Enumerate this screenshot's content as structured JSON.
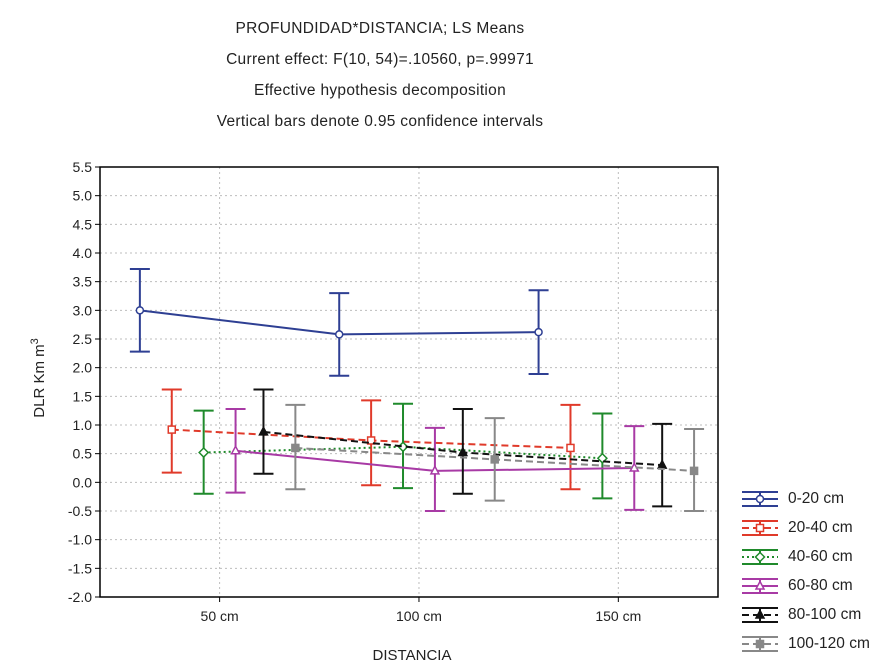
{
  "chart_data": {
    "type": "line",
    "title": "PROFUNDIDAD*DISTANCIA; LS Means",
    "subtitle_lines": [
      "Current effect: F(10, 54)=.10560, p=.99971",
      "Effective hypothesis decomposition",
      "Vertical bars denote 0.95 confidence intervals"
    ],
    "xlabel": "DISTANCIA",
    "ylabel": "DLR Km m",
    "ylabel_superscript": "3",
    "x_tick_labels": [
      "50 cm",
      "100 cm",
      "150 cm"
    ],
    "y_ticks": [
      5.5,
      5.0,
      4.5,
      4.0,
      3.5,
      3.0,
      2.5,
      2.0,
      1.5,
      1.0,
      0.5,
      0.0,
      -0.5,
      -1.0,
      -1.5,
      -2.0
    ],
    "y_tick_labels": [
      "5.5",
      "5.0",
      "4.5",
      "4.0",
      "3.5",
      "3.0",
      "2.5",
      "2.0",
      "1.5",
      "1.0",
      "0.5",
      "0.0",
      "-0.5",
      "-1.0",
      "-1.5",
      "-2.0"
    ],
    "ylim": [
      -2.0,
      5.5
    ],
    "grid": true,
    "legend_position": "right",
    "series": [
      {
        "name": "0-20 cm",
        "color": "#2e3f93",
        "marker": "circle",
        "dash": "solid",
        "x": [
          30,
          80,
          130
        ],
        "y": [
          3.0,
          2.58,
          2.62
        ],
        "lower": [
          2.28,
          1.86,
          1.89
        ],
        "upper": [
          3.72,
          3.3,
          3.35
        ]
      },
      {
        "name": "20-40 cm",
        "color": "#e03a2a",
        "marker": "square",
        "dash": "dashed",
        "x": [
          38,
          88,
          138
        ],
        "y": [
          0.92,
          0.73,
          0.6
        ],
        "lower": [
          0.17,
          -0.05,
          -0.12
        ],
        "upper": [
          1.62,
          1.43,
          1.35
        ]
      },
      {
        "name": "40-60 cm",
        "color": "#1f8a2b",
        "marker": "diamond",
        "dash": "dotted",
        "x": [
          46,
          96,
          146
        ],
        "y": [
          0.52,
          0.62,
          0.42
        ],
        "lower": [
          -0.2,
          -0.1,
          -0.28
        ],
        "upper": [
          1.25,
          1.37,
          1.2
        ]
      },
      {
        "name": "60-80 cm",
        "color": "#a83aa5",
        "marker": "triangle",
        "dash": "solid",
        "x": [
          54,
          104,
          154
        ],
        "y": [
          0.55,
          0.2,
          0.25
        ],
        "lower": [
          -0.18,
          -0.5,
          -0.48
        ],
        "upper": [
          1.28,
          0.95,
          0.98
        ]
      },
      {
        "name": "80-100 cm",
        "color": "#111111",
        "marker": "filled-triangle",
        "dash": "dashed",
        "x": [
          61,
          111,
          161
        ],
        "y": [
          0.88,
          0.52,
          0.3
        ],
        "lower": [
          0.15,
          -0.2,
          -0.42
        ],
        "upper": [
          1.62,
          1.28,
          1.02
        ]
      },
      {
        "name": "100-120 cm",
        "color": "#888888",
        "marker": "filled-square",
        "dash": "dashed",
        "x": [
          69,
          119,
          169
        ],
        "y": [
          0.6,
          0.4,
          0.2
        ],
        "lower": [
          -0.12,
          -0.32,
          -0.5
        ],
        "upper": [
          1.35,
          1.12,
          0.93
        ]
      }
    ]
  }
}
